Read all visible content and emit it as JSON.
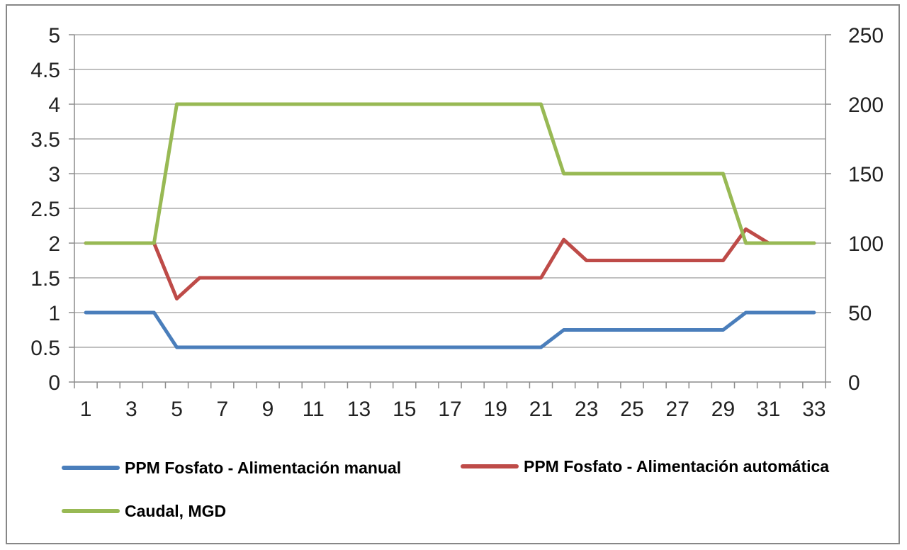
{
  "chart_data": {
    "type": "line",
    "title": "",
    "xlabel": "",
    "ylabel": "",
    "x": [
      1,
      2,
      3,
      4,
      5,
      6,
      7,
      8,
      9,
      10,
      11,
      12,
      13,
      14,
      15,
      16,
      17,
      18,
      19,
      20,
      21,
      22,
      23,
      24,
      25,
      26,
      27,
      28,
      29,
      30,
      31,
      32,
      33
    ],
    "x_tick_labels": [
      "1",
      "3",
      "5",
      "7",
      "9",
      "11",
      "13",
      "15",
      "17",
      "19",
      "21",
      "23",
      "25",
      "27",
      "29",
      "31",
      "33"
    ],
    "y_left": {
      "range": [
        0,
        5
      ],
      "ticks": [
        "0",
        "0.5",
        "1",
        "1.5",
        "2",
        "2.5",
        "3",
        "3.5",
        "4",
        "4.5",
        "5"
      ]
    },
    "y_right": {
      "range": [
        0,
        250
      ],
      "ticks": [
        "0",
        "50",
        "100",
        "150",
        "200",
        "250"
      ]
    },
    "grid": true,
    "legend_position": "bottom",
    "series": [
      {
        "name": "PPM Fosfato - Alimentación manual",
        "axis": "left",
        "color": "#4a7ebb",
        "values": [
          1,
          1,
          1,
          1,
          0.5,
          0.5,
          0.5,
          0.5,
          0.5,
          0.5,
          0.5,
          0.5,
          0.5,
          0.5,
          0.5,
          0.5,
          0.5,
          0.5,
          0.5,
          0.5,
          0.5,
          0.75,
          0.75,
          0.75,
          0.75,
          0.75,
          0.75,
          0.75,
          0.75,
          1,
          1,
          1,
          1
        ]
      },
      {
        "name": "PPM Fosfato - Alimentación automática",
        "axis": "left",
        "color": "#be4b48",
        "values": [
          2,
          2,
          2,
          2,
          1.2,
          1.5,
          1.5,
          1.5,
          1.5,
          1.5,
          1.5,
          1.5,
          1.5,
          1.5,
          1.5,
          1.5,
          1.5,
          1.5,
          1.5,
          1.5,
          1.5,
          2.05,
          1.75,
          1.75,
          1.75,
          1.75,
          1.75,
          1.75,
          1.75,
          2.2,
          2,
          2,
          2
        ]
      },
      {
        "name": "Caudal, MGD",
        "axis": "right",
        "color": "#98b954",
        "values": [
          100,
          100,
          100,
          100,
          200,
          200,
          200,
          200,
          200,
          200,
          200,
          200,
          200,
          200,
          200,
          200,
          200,
          200,
          200,
          200,
          200,
          150,
          150,
          150,
          150,
          150,
          150,
          150,
          150,
          100,
          100,
          100,
          100
        ]
      }
    ]
  }
}
